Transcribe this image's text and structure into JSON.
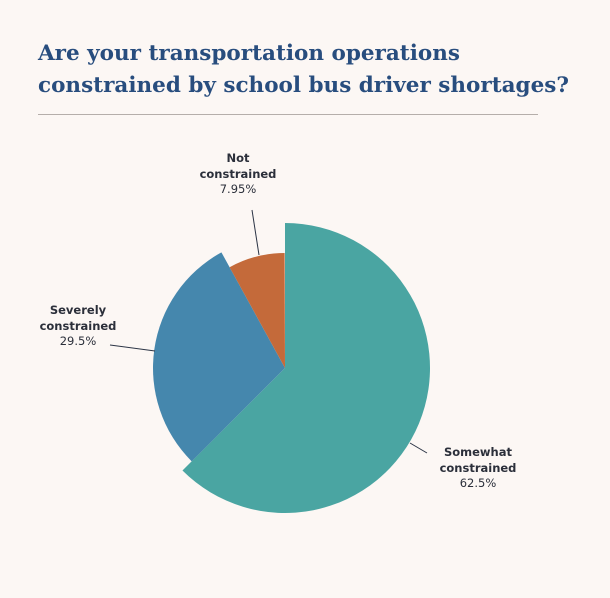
{
  "chart_data": {
    "type": "pie",
    "title": "Are your transportation operations constrained by school bus driver shortages?",
    "slices": [
      {
        "label_lines": [
          "Somewhat",
          "constrained"
        ],
        "label": "Somewhat constrained",
        "value": 62.5,
        "value_label": "62.5%",
        "color": "#4aa5a2"
      },
      {
        "label_lines": [
          "Severely",
          "constrained"
        ],
        "label": "Severely constrained",
        "value": 29.5,
        "value_label": "29.5%",
        "color": "#4587ad"
      },
      {
        "label_lines": [
          "Not",
          "constrained"
        ],
        "label": "Not constrained",
        "value": 7.95,
        "value_label": "7.95%",
        "color": "#c46a3a"
      }
    ],
    "start_angle": "top",
    "direction": "clockwise",
    "legend": "none"
  }
}
